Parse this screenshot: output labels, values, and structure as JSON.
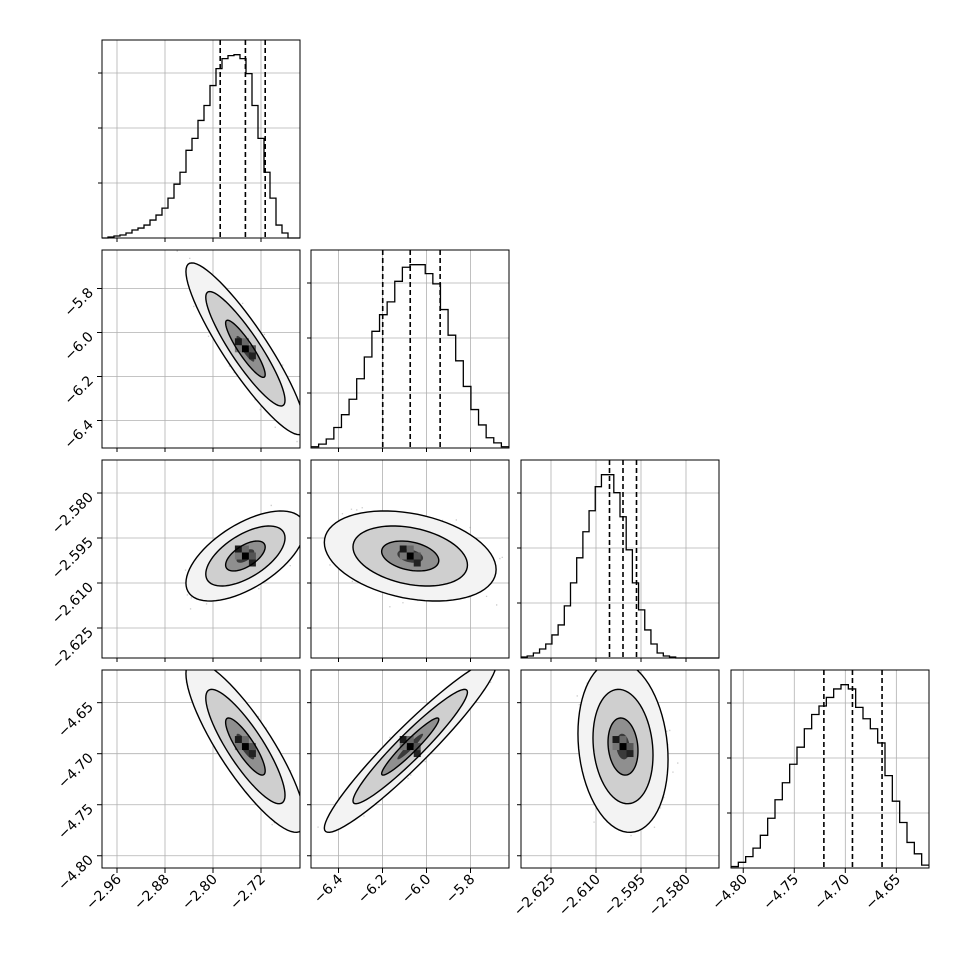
{
  "chart_data": {
    "type": "corner",
    "title": "",
    "params": [
      {
        "ticks": [
          -2.96,
          -2.88,
          -2.8,
          -2.72
        ],
        "tick_labels": [
          "−2.96",
          "−2.88",
          "−2.80",
          "−2.72"
        ],
        "range": [
          -2.985,
          -2.655
        ],
        "quantiles": [
          -2.788,
          -2.746,
          -2.713
        ],
        "mean": -2.746,
        "sd": 0.033
      },
      {
        "ticks": [
          -6.4,
          -6.2,
          -6.0,
          -5.8
        ],
        "tick_labels": [
          "−6.4",
          "−6.2",
          "−6.0",
          "−5.8"
        ],
        "range": [
          -6.525,
          -5.625
        ],
        "quantiles": [
          -6.199,
          -6.074,
          -5.938
        ],
        "mean": -6.074,
        "sd": 0.13
      },
      {
        "ticks": [
          -2.625,
          -2.61,
          -2.595,
          -2.58
        ],
        "tick_labels": [
          "−2.625",
          "−2.610",
          "−2.595",
          "−2.580"
        ],
        "range": [
          -2.635,
          -2.569
        ],
        "quantiles": [
          -2.6055,
          -2.601,
          -2.5965
        ],
        "mean": -2.601,
        "sd": 0.005
      },
      {
        "ticks": [
          -4.8,
          -4.75,
          -4.7,
          -4.65
        ],
        "tick_labels": [
          "−4.80",
          "−4.75",
          "−4.70",
          "−4.65"
        ],
        "range": [
          -4.812,
          -4.618
        ],
        "quantiles": [
          -4.721,
          -4.693,
          -4.664
        ],
        "mean": -4.693,
        "sd": 0.028
      }
    ],
    "histograms": [
      {
        "param": 0,
        "counts": [
          0,
          1,
          2,
          3,
          5,
          8,
          10,
          13,
          18,
          23,
          30,
          40,
          54,
          66,
          88,
          100,
          118,
          133,
          153,
          170,
          180,
          183,
          184,
          180,
          165,
          133,
          100,
          66,
          40,
          13,
          5,
          0,
          0
        ]
      },
      {
        "param": 1,
        "counts": [
          1,
          3,
          7,
          16,
          26,
          38,
          54,
          71,
          91,
          104,
          114,
          130,
          141,
          143,
          143,
          136,
          128,
          108,
          88,
          68,
          48,
          30,
          18,
          8,
          4,
          1
        ]
      },
      {
        "param": 2,
        "counts": [
          1,
          2,
          5,
          9,
          14,
          23,
          33,
          52,
          75,
          100,
          126,
          147,
          171,
          183,
          183,
          165,
          141,
          108,
          75,
          48,
          28,
          14,
          5,
          2,
          1,
          0,
          0,
          0,
          0,
          0,
          0,
          0
        ]
      },
      {
        "param": 3,
        "counts": [
          1,
          4,
          8,
          14,
          23,
          35,
          48,
          60,
          73,
          85,
          98,
          108,
          114,
          120,
          126,
          129,
          126,
          113,
          105,
          98,
          88,
          65,
          47,
          32,
          18,
          10,
          2
        ]
      }
    ],
    "pairs": [
      {
        "x": 0,
        "y": 1,
        "correlation": -0.9
      },
      {
        "x": 0,
        "y": 2,
        "correlation": 0.6
      },
      {
        "x": 1,
        "y": 2,
        "correlation": -0.3
      },
      {
        "x": 0,
        "y": 3,
        "correlation": -0.85
      },
      {
        "x": 1,
        "y": 3,
        "correlation": 0.95
      },
      {
        "x": 2,
        "y": 3,
        "correlation": -0.15
      }
    ],
    "contour_levels": [
      0.393,
      0.865,
      0.989
    ],
    "grid": true,
    "colors": {
      "line": "#000000",
      "points": "#a0a0a0",
      "grid": "#b0b0b0"
    }
  }
}
